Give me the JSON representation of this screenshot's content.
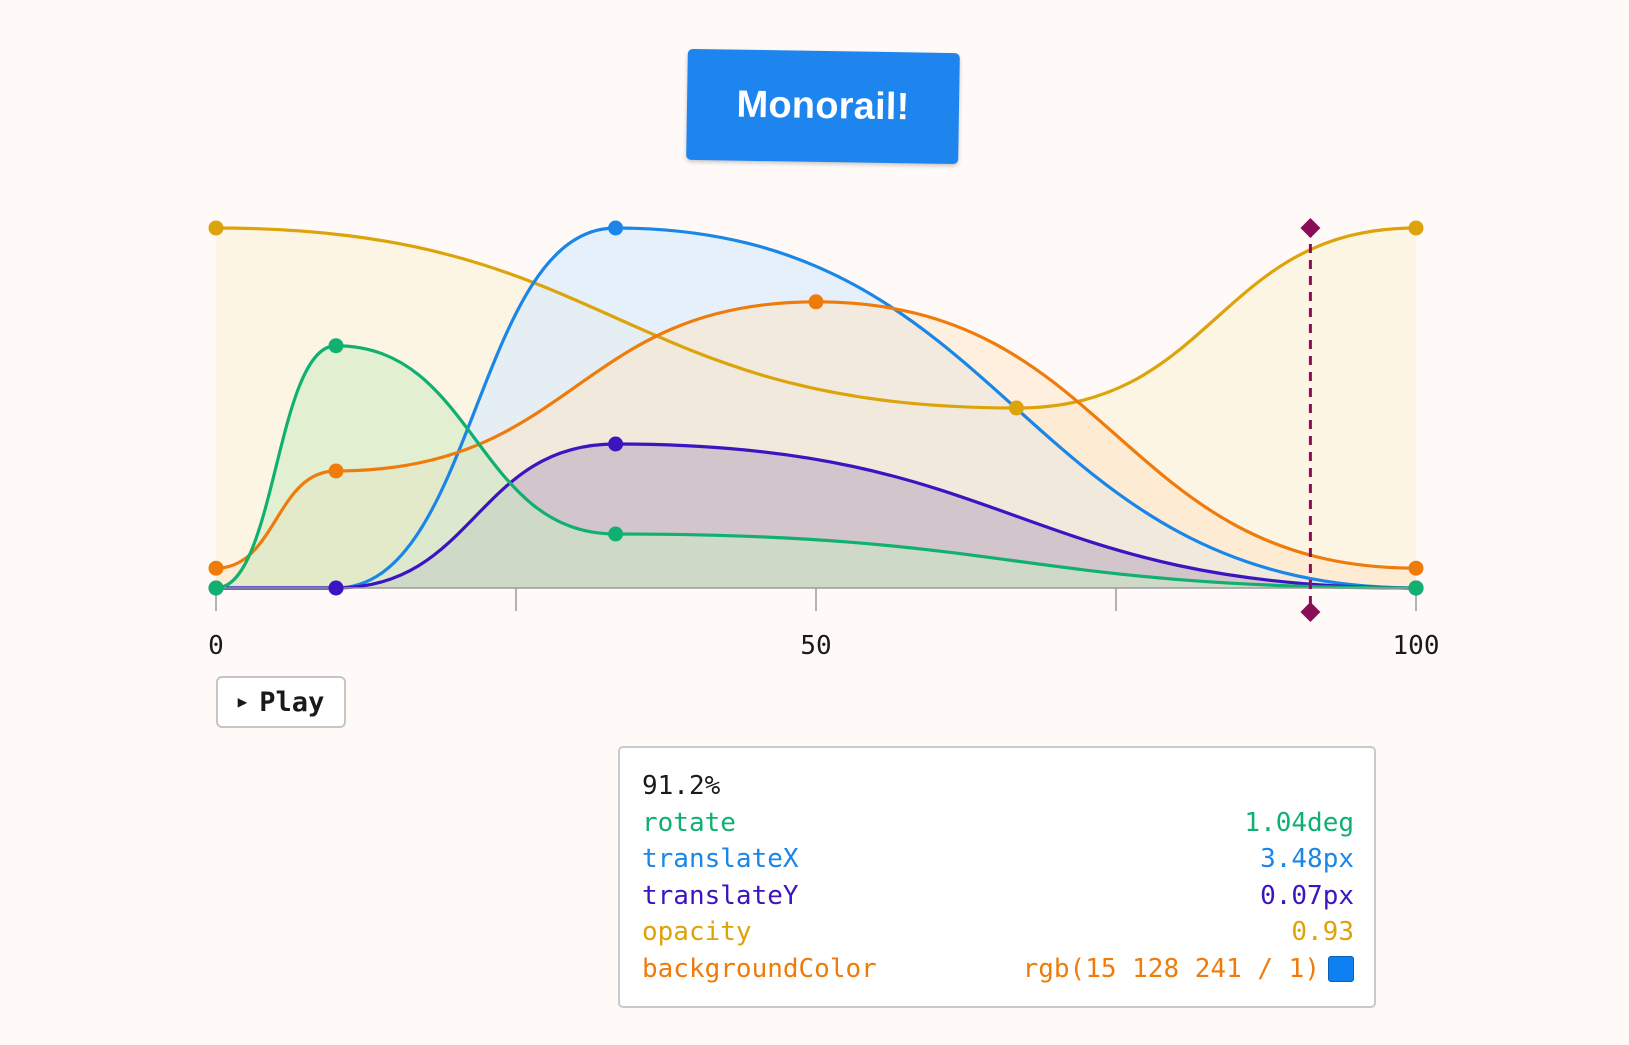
{
  "button": {
    "label": "Monorail!"
  },
  "play": {
    "label": "Play",
    "icon": "play-triangle-icon"
  },
  "readout": {
    "progress": "91.2%",
    "rows": [
      {
        "name": "rotate",
        "value": "1.04deg",
        "color": "#10b070"
      },
      {
        "name": "translateX",
        "value": "3.48px",
        "color": "#1a86e8"
      },
      {
        "name": "translateY",
        "value": "0.07px",
        "color": "#3c15c0"
      },
      {
        "name": "opacity",
        "value": "0.93",
        "color": "#dca30a"
      },
      {
        "name": "backgroundColor",
        "value": "rgb(15 128 241 / 1)",
        "color": "#ef7b0b",
        "swatch": "#0f80f1"
      }
    ]
  },
  "chart_data": {
    "type": "line",
    "x_ticks": [
      "0",
      "50",
      "100"
    ],
    "x_minor_ticks": [
      0,
      25,
      50,
      75,
      100
    ],
    "xlim": [
      0,
      100
    ],
    "ylim": [
      0,
      1
    ],
    "playhead": 91.2,
    "playhead_color": "#8a0e55",
    "series": [
      {
        "color": "#dca30a",
        "fill": "#fbf0d2",
        "fill_opacity": 0.55,
        "keyframes": [
          [
            0,
            1.0
          ],
          [
            66.7,
            0.5
          ],
          [
            100,
            1.0
          ]
        ]
      },
      {
        "color": "#1a86e8",
        "fill": "#d6e9fb",
        "fill_opacity": 0.6,
        "keyframes": [
          [
            10,
            0.0
          ],
          [
            33.3,
            1.0
          ],
          [
            100,
            0.0
          ]
        ]
      },
      {
        "color": "#ef7b0b",
        "fill": "#fde3c4",
        "fill_opacity": 0.5,
        "keyframes": [
          [
            0,
            0.055
          ],
          [
            10,
            0.325
          ],
          [
            50,
            0.795
          ],
          [
            100,
            0.055
          ]
        ]
      },
      {
        "color": "#3c15c0",
        "fill": "#b8a8c0",
        "fill_opacity": 0.55,
        "keyframes": [
          [
            0,
            0.0
          ],
          [
            10,
            0.0
          ],
          [
            33.3,
            0.4
          ],
          [
            100,
            0.0
          ]
        ]
      },
      {
        "color": "#10b070",
        "fill": "#cce9c2",
        "fill_opacity": 0.55,
        "keyframes": [
          [
            0,
            0.0
          ],
          [
            10,
            0.673
          ],
          [
            33.3,
            0.15
          ],
          [
            100,
            0.0
          ]
        ]
      }
    ]
  }
}
